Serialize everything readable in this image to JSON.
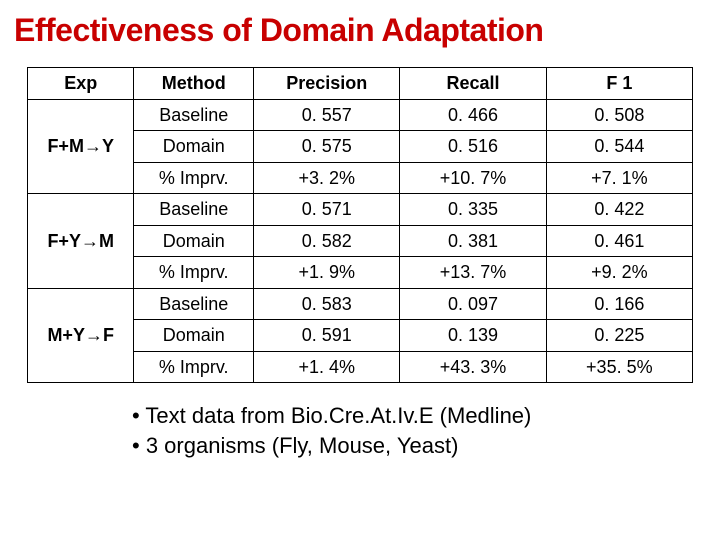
{
  "title": "Effectiveness of Domain Adaptation",
  "table": {
    "headers": [
      "Exp",
      "Method",
      "Precision",
      "Recall",
      "F 1"
    ],
    "groups": [
      {
        "exp": "F+M→Y",
        "rows": [
          [
            "Baseline",
            "0. 557",
            "0. 466",
            "0. 508"
          ],
          [
            "Domain",
            "0. 575",
            "0. 516",
            "0. 544"
          ],
          [
            "% Imprv.",
            "+3. 2%",
            "+10. 7%",
            "+7. 1%"
          ]
        ]
      },
      {
        "exp": "F+Y→M",
        "rows": [
          [
            "Baseline",
            "0. 571",
            "0. 335",
            "0. 422"
          ],
          [
            "Domain",
            "0. 582",
            "0. 381",
            "0. 461"
          ],
          [
            "% Imprv.",
            "+1. 9%",
            "+13. 7%",
            "+9. 2%"
          ]
        ]
      },
      {
        "exp": "M+Y→F",
        "rows": [
          [
            "Baseline",
            "0. 583",
            "0. 097",
            "0. 166"
          ],
          [
            "Domain",
            "0. 591",
            "0. 139",
            "0. 225"
          ],
          [
            "% Imprv.",
            "+1. 4%",
            "+43. 3%",
            "+35. 5%"
          ]
        ]
      }
    ]
  },
  "bullets": [
    "Text data from Bio.Cre.At.Iv.E (Medline)",
    "3 organisms (Fly, Mouse, Yeast)"
  ]
}
